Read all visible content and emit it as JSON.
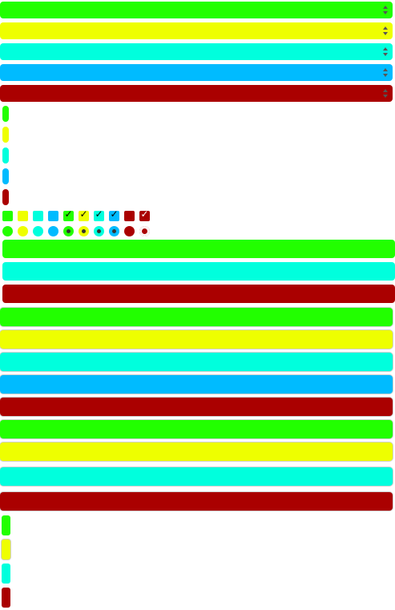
{
  "colors": {
    "green": "#22ff00",
    "yellow": "#eeff00",
    "cyan": "#00ffdd",
    "blue": "#00bbff",
    "darkred": "#aa0000"
  },
  "selects": [
    {
      "color": "#22ff00",
      "value": ""
    },
    {
      "color": "#eeff00",
      "value": ""
    },
    {
      "color": "#00ffdd",
      "value": ""
    },
    {
      "color": "#00bbff",
      "value": ""
    },
    {
      "color": "#aa0000",
      "value": ""
    }
  ],
  "icons": {
    "select_arrow": "sort-arrows-icon",
    "check": "check-icon"
  },
  "checkbox_glyph": "✓",
  "checkboxes": [
    {
      "color": "#22ff00",
      "checked": false
    },
    {
      "color": "#eeff00",
      "checked": false
    },
    {
      "color": "#00ffdd",
      "checked": false
    },
    {
      "color": "#00bbff",
      "checked": false
    },
    {
      "color": "#22ff00",
      "checked": true
    },
    {
      "color": "#eeff00",
      "checked": true
    },
    {
      "color": "#00ffdd",
      "checked": true
    },
    {
      "color": "#00bbff",
      "checked": true
    },
    {
      "color": "#aa0000",
      "checked": false
    },
    {
      "color": "#aa0000",
      "checked": true
    }
  ],
  "radios": [
    {
      "color": "#22ff00",
      "checked": false
    },
    {
      "color": "#eeff00",
      "checked": false
    },
    {
      "color": "#00ffdd",
      "checked": false
    },
    {
      "color": "#00bbff",
      "checked": false
    },
    {
      "color": "#22ff00",
      "checked": true
    },
    {
      "color": "#eeff00",
      "checked": true
    },
    {
      "color": "#00ffdd",
      "checked": true
    },
    {
      "color": "#00bbff",
      "checked": true
    },
    {
      "color": "#aa0000",
      "checked": false
    },
    {
      "color": "#aa0000",
      "checked": true
    }
  ]
}
